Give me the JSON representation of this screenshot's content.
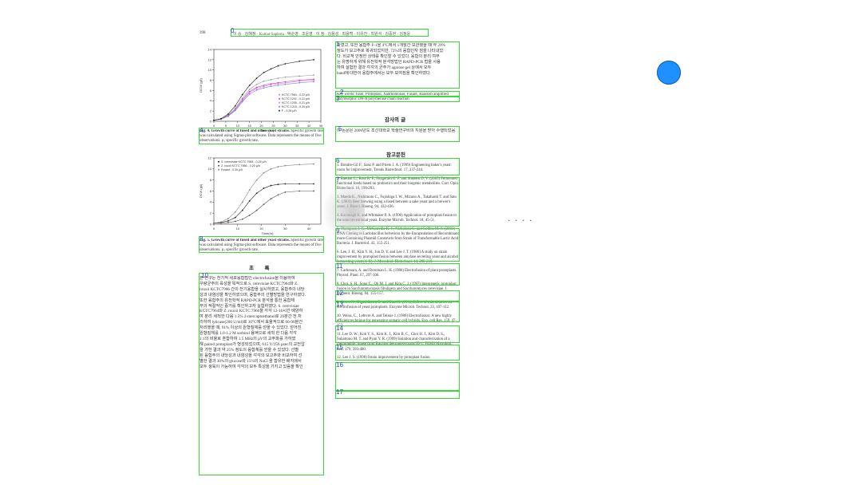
{
  "page": {
    "number": "398",
    "header": "이 승 · 김혜정 · Kumar Sapkota · 박순영 · 조운영 · 이 정 · 김용성 · 최용백 · 이유진 · 최원석 · 김중현 · 김정윤",
    "badges": [
      "0",
      "1",
      "2",
      "3",
      "4",
      "5",
      "6",
      "7",
      "8",
      "9",
      "10",
      "11",
      "12",
      "13",
      "14",
      "15",
      "16",
      "17"
    ],
    "right_top_text": [
      "하였고, 또한 융합주 F-1을 4°C에서 1개월간 보관했을 때 약 29%",
      "정도가 보고주로 복귀되었지만, 72%의 융합인자 점을 나타내었",
      "다. 비교적 안정한 상태를 확인할 수 있었다. 융합의 분리 여부",
      "는 유명하게 위해 유전학적 분석방법인 RAPD-PCR 법을 사용",
      "하여 실험한 결과 각각의 균주가 agarose gel 상에서 모두",
      "band에 대한이 융합주에서는 모두 보여짐을 확인하였다."
    ],
    "keywords": "Key words: fusel, Protoplast, Xanthomonas, Fusant, Random amplified polymorphic DN-A polymerase chain reaction",
    "ack_heading": "감사의 글",
    "ack_text": "이 논문은 2006년도 조선대학교 학술연구비의 지원을 받아 수행되었음.",
    "ref_heading": "참고문헌",
    "abstract_heading": "초      록",
    "abstract_text": [
      "본 연구는 전기적 세포융합법인 electrofusion을 이용하여",
      "우량균주의 육성을 목적으로 S. cerevisiae KCTC7964와 Z.",
      "rouxii KCTC7966 간의 전기융합을 실시하였고, 융합주의 내당",
      "성과 내염성을 확인하였으며, 융합주의 선별방법을 연구하였다.",
      "또한 융합주의 유전학적 RAPD-PCR 분석을 통한 융합체",
      "부의 적절적인 증거를 확인하고자 실험하였다. S. cerevisiae",
      "KCTC7964와 Z. rouxii KCTC 7966을 각각 12-16시간 배양하",
      "여 분리·세척한 다음 1.5% 2-mercaptoethanol로 26분간 전 처",
      "리하여 lyticase(200 U/ml)로 30°C에서 효율적으로 60-90분간",
      "처리했을 때, 91% 이상의 원형질체를 얻을 수 있었다. 얻어진",
      "원형질체를 1.0-1.2 M sorbitol 용액으로 세척 한 다음 각각",
      "1:1의 비율로 혼합하여 1.5 MHz의 pV의 교주파를 가하였",
      "해 paired protoplast가 형성되었으며, 615 V/256 µsec의 교전압",
      "을 가한 결과 약 25% 정도의 융합체를 얻을 수 있었다. 선별",
      "된 융합주의 내당성과 내염성을 각각의 보고주와 비교하여 선",
      "별한 결과 30%의 glucose와 15%의 NaCl 을 함유한 배지에서",
      "모두 생육이 가능하여 각각의 모두 특성을 가지고 있음을 확인"
    ],
    "fig4_caption_bold": "Fig. 4. Growth curve of fused and other yeast strains.",
    "fig4_caption": "Specific growth rate was calculated using Sigma-plot software. Data represents the means of five observations. µ, specific growth rate.",
    "fig5_caption_bold": "Fig. 5. Growth curve of fused and other yeast strains.",
    "fig5_caption": "Specific growth rate was calculated using Sigma-plot software. Data represents the means of five observations. µ, specific growth rate.",
    "references": [
      "1. Bondre-Gil F., Sanz P. and Prieto J. A. (1999) Engineering baker's yeast: room for improvement. Trends Biotechnol. 17, 237-244.",
      "2. Baedon C., Ross R. P., Fitzgerald G. F. and Sindeen D. V. (2005) Fermented functional foods based on probiotics and their biogenic metabolites. Curr. Opin. Biotechnol. 16, 190-203.",
      "3. Maeda K., Nishimoto C., Fujishiga I. W., Mizuno A., Takahashi T. and Sato K. (2003) Beer brewing using a fused between a sake yeast and a brewer's yeast. J. Biosci. Bioeng. 94, 432-436.",
      "4. Kavanagh K. and Whittaker P. A. (1996) Application of protoplast fusion to the nonconventional yeast. Enzyme Microb. Technol. 18, 45-51.",
      "5. Thompson J. K., McConville K. J., Nicholson C. and Collins M. A. (2003) DNA Cloning in Lactobacillus helveticus by the Encapsulation of Recombinant more-Containing Plasmid Constructs from Strain of Transformable Lactic Acid Bacteria. J. Bacteriol. 43, 155-251.",
      "6. Lee, J. H., Kim Y. H., Jun D. Y. and Lee J. T. (1986) A study on strain improvement by protoplast fusion between amylase secreting yeast and alcohol fermenting yeast (1, II). J. Microbiol. Biotechnol. 14, 209-218.",
      "7. Carbonara, A. and Bornman L. H. (1986) Electrofusion of plant protoplasts. Physiol. Plant. 67, 297-306.",
      "8. Choi, S. H., Song C., Oh M. J. and Kim C. J. (1997) Intergeneric protoplast fusion in Saccharomycopsis fibuligera and Saccharomyces cerevisiae. J. Ferment. Bioeng. 84, 155-157.",
      "9. Goren N., Higashikawa R. and Hirai H. (1998) Effect of microbiotics on electrofusion of yeast protoplasts. Enzyme Microb. Technol. 23, 107-112.",
      "10. Weiss, C., Lefevre A. and Teissie J. (1986) Electrofusion: A new highly efficient technique for generating somatic cell hybrids. Exp. cell Res. 159, 47-152.",
      "11. Lee D. W., Koh Y. S., Kim K. J., Kim B. C., Choi H. J., Kim D. S., Suhartono M. T. and Pyun Y. R. (1999) Isolation and characterization of a thermophilic lipase from Bacillus thermoleovorans ID-1. FEMS Microbiol. Lett. 179, 393-400.",
      "12. Lee J. S. (1998) Strain improvement by protoplast fusion"
    ],
    "overlay_ellipsis": "· · · ·"
  },
  "colors": {
    "box": "#33dd33",
    "badge": "#2a3fb0",
    "blue_dot": "#1e90ff"
  },
  "chart_data": [
    {
      "type": "line",
      "ylabel": "DCW (g/l)",
      "xlabel": "Time (hr)",
      "xlim": [
        0,
        45
      ],
      "ylim": [
        0,
        14
      ],
      "xticks": [
        0,
        5,
        10,
        15,
        20,
        25,
        30,
        35,
        40,
        45
      ],
      "yticks": [
        0,
        2,
        4,
        6,
        8,
        10,
        12,
        14
      ],
      "x": [
        0,
        3,
        6,
        9,
        12,
        15,
        18,
        21,
        24,
        27,
        30,
        36,
        42
      ],
      "series": [
        {
          "name": "KCTC 7964 - 0.22 µ/h",
          "color": "#9a9a9a",
          "values": [
            0.2,
            0.4,
            1.2,
            2.5,
            4.5,
            6.2,
            7.2,
            7.8,
            8.1,
            8.4,
            8.6,
            8.8,
            9.0
          ]
        },
        {
          "name": "KCTC 1202 - 0.21 µ/h",
          "color": "#c040c0",
          "values": [
            0.2,
            0.4,
            1.1,
            2.3,
            4.2,
            5.8,
            6.6,
            7.0,
            7.3,
            7.5,
            7.7,
            8.0,
            8.2
          ]
        },
        {
          "name": "KCTC 1205 - 0.21 µ/h",
          "color": "#e080e0",
          "values": [
            0.2,
            0.4,
            1.0,
            2.2,
            4.0,
            5.6,
            6.4,
            6.8,
            7.1,
            7.3,
            7.5,
            7.8,
            8.0
          ]
        },
        {
          "name": "KCTC 1215 - 0.20 µ/h",
          "color": "#8080d0",
          "values": [
            0.2,
            0.4,
            1.0,
            2.1,
            3.8,
            5.3,
            6.1,
            6.5,
            6.8,
            7.0,
            7.2,
            7.5,
            7.7
          ]
        },
        {
          "name": "F - 0.28 µ/h",
          "color": "#222222",
          "values": [
            0.2,
            0.5,
            1.4,
            3.0,
            5.2,
            7.0,
            8.4,
            9.5,
            10.2,
            10.8,
            11.2,
            11.7,
            12.0
          ]
        }
      ]
    },
    {
      "type": "line",
      "ylabel": "DCW (g/l)",
      "xlabel": "Time(hr)",
      "xlim": [
        0,
        45
      ],
      "ylim": [
        0,
        12
      ],
      "xticks": [
        0,
        10,
        20,
        30,
        40
      ],
      "yticks": [
        0,
        2,
        4,
        6,
        8,
        10,
        12
      ],
      "x": [
        0,
        3,
        6,
        9,
        12,
        15,
        18,
        21,
        24,
        27,
        30,
        36,
        42
      ],
      "series": [
        {
          "name": "S. cerevisiae KCTC 7964 - 0.29 µ/h",
          "color": "#222222",
          "values": [
            0.2,
            0.3,
            0.6,
            1.2,
            2.5,
            4.2,
            5.6,
            6.5,
            7.0,
            7.2,
            7.3,
            7.3,
            7.3
          ]
        },
        {
          "name": "Z. rouxii KCTC 7966 - 0.20 µ/h",
          "color": "#555555",
          "values": [
            0.2,
            0.2,
            0.3,
            0.5,
            0.9,
            1.6,
            2.5,
            3.6,
            4.6,
            5.3,
            5.8,
            6.0,
            6.0
          ]
        },
        {
          "name": "Fusant - 0.30 µ/h",
          "color": "#888888",
          "values": [
            0.2,
            0.4,
            1.0,
            2.2,
            4.0,
            6.2,
            8.0,
            9.3,
            10.0,
            10.4,
            10.6,
            10.8,
            10.9
          ]
        }
      ]
    }
  ]
}
